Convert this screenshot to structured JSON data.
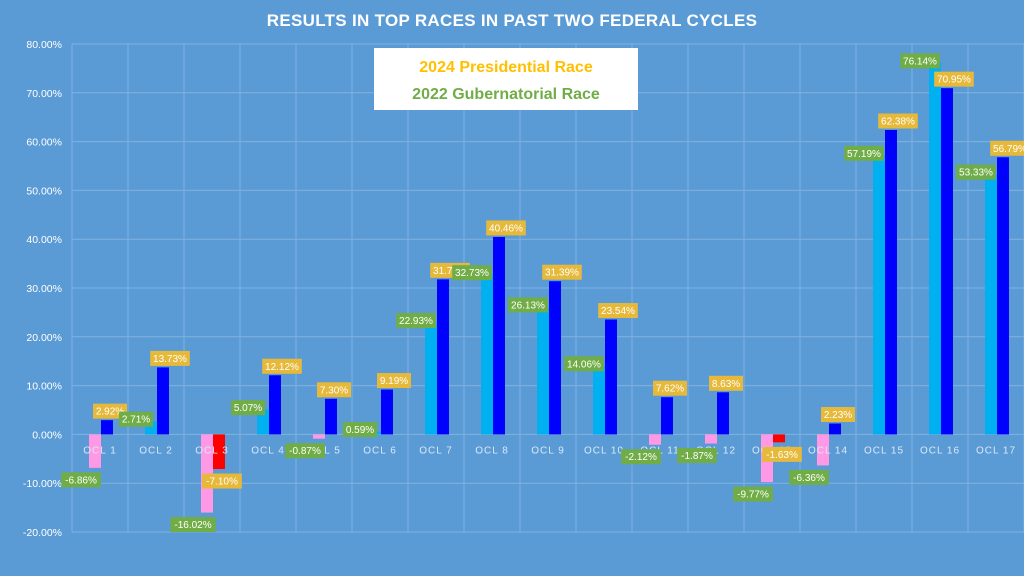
{
  "chart_data": {
    "type": "bar",
    "title": "RESULTS IN TOP RACES IN PAST TWO FEDERAL CYCLES",
    "xlabel": "",
    "ylabel": "",
    "ylim": [
      -20,
      80
    ],
    "yticks": [
      "80.00%",
      "70.00%",
      "60.00%",
      "50.00%",
      "40.00%",
      "30.00%",
      "20.00%",
      "10.00%",
      "0.00%",
      "-10.00%",
      "-20.00%"
    ],
    "ytick_values": [
      80,
      70,
      60,
      50,
      40,
      30,
      20,
      10,
      0,
      -10,
      -20
    ],
    "categories": [
      "OCL 1",
      "OCL 2",
      "OCL 3",
      "OCL 4",
      "OCL 5",
      "OCL 6",
      "OCL 7",
      "OCL 8",
      "OCL 9",
      "OCL 10",
      "OCL 11",
      "OCL 12",
      "OCL 13",
      "OCL 14",
      "OCL 15",
      "OCL 16",
      "OCL 17"
    ],
    "grid": true,
    "legend_position": "top-center",
    "series": [
      {
        "name": "2022 Gubernatorial Race",
        "color_positive": "#00b0f0",
        "color_negative": "#ff99e6",
        "label_color": "#70ad47",
        "values": [
          -6.86,
          2.71,
          -16.02,
          5.07,
          -0.87,
          0.59,
          22.93,
          32.73,
          26.13,
          14.06,
          -2.12,
          -1.87,
          -9.77,
          -6.36,
          57.19,
          76.14,
          53.33
        ],
        "labels": [
          "-6.86%",
          "2.71%",
          "-16.02%",
          "5.07%",
          "-0.87%",
          "0.59%",
          "22.93%",
          "32.73%",
          "26.13%",
          "14.06%",
          "-2.12%",
          "-1.87%",
          "-9.77%",
          "-6.36%",
          "57.19%",
          "76.14%",
          "53.33%"
        ]
      },
      {
        "name": "2024 Presidential Race",
        "color_positive": "#0000ff",
        "color_negative": "#ff0000",
        "label_color": "#e6b93a",
        "values": [
          2.92,
          13.73,
          -7.1,
          12.12,
          7.3,
          9.19,
          31.77,
          40.46,
          31.39,
          23.54,
          7.62,
          8.63,
          -1.63,
          2.23,
          62.38,
          70.95,
          56.79
        ],
        "labels": [
          "2.92%",
          "13.73%",
          "-7.10%",
          "12.12%",
          "7.30%",
          "9.19%",
          "31.77%",
          "40.46%",
          "31.39%",
          "23.54%",
          "7.62%",
          "8.63%",
          "-1.63%",
          "2.23%",
          "62.38%",
          "70.95%",
          "56.79%"
        ]
      }
    ],
    "legend": {
      "entries": [
        {
          "text": "2024 Presidential Race",
          "color": "#ffc000"
        },
        {
          "text": "2022 Gubernatorial Race",
          "color": "#70ad47"
        }
      ]
    },
    "colors": {
      "background": "#5b9bd5",
      "gridline": "#7fb2e2",
      "legend_box": "#ffffff"
    }
  }
}
